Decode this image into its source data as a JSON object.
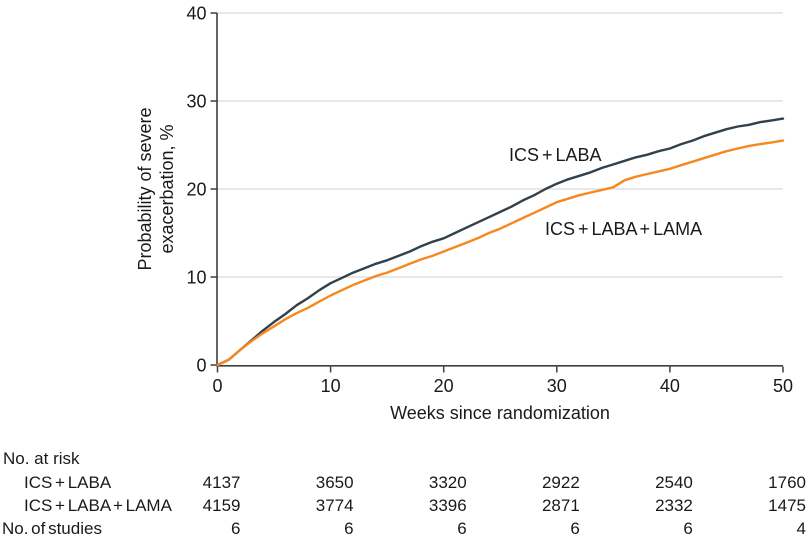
{
  "figure": {
    "y_title_line1": "Probability of severe",
    "y_title_line2": "exacerbation, %",
    "label_ics_laba": "ICS + LABA",
    "label_ics_laba_lama": "ICS + LABA + LAMA"
  },
  "chart_data": {
    "type": "line",
    "title": "",
    "xlabel": "Weeks since randomization",
    "ylabel": "Probability of severe exacerbation, %",
    "xlim": [
      0,
      50
    ],
    "ylim": [
      0,
      40
    ],
    "x_ticks": [
      0,
      10,
      20,
      30,
      40,
      50
    ],
    "y_ticks": [
      0,
      10,
      20,
      30,
      40
    ],
    "grid": "horizontal",
    "legend_position": "inline-labels",
    "series": [
      {
        "name": "ICS + LABA",
        "color": "#31424b",
        "x": [
          0,
          1,
          2,
          3,
          4,
          5,
          6,
          7,
          8,
          9,
          10,
          11,
          12,
          13,
          14,
          15,
          16,
          17,
          18,
          19,
          20,
          21,
          22,
          23,
          24,
          25,
          26,
          27,
          28,
          29,
          30,
          31,
          32,
          33,
          34,
          35,
          36,
          37,
          38,
          39,
          40,
          41,
          42,
          43,
          44,
          45,
          46,
          47,
          48,
          49,
          50
        ],
        "y": [
          0,
          0.6,
          1.7,
          2.8,
          3.9,
          4.9,
          5.8,
          6.8,
          7.6,
          8.5,
          9.3,
          9.9,
          10.5,
          11.0,
          11.5,
          11.9,
          12.4,
          12.9,
          13.5,
          14.0,
          14.4,
          15.0,
          15.6,
          16.2,
          16.8,
          17.4,
          18.0,
          18.7,
          19.3,
          20.0,
          20.6,
          21.1,
          21.5,
          21.9,
          22.4,
          22.8,
          23.2,
          23.6,
          23.9,
          24.3,
          24.6,
          25.1,
          25.5,
          26.0,
          26.4,
          26.8,
          27.1,
          27.3,
          27.6,
          27.8,
          28.0
        ]
      },
      {
        "name": "ICS + LABA + LAMA",
        "color": "#f6881f",
        "x": [
          0,
          1,
          2,
          3,
          4,
          5,
          6,
          7,
          8,
          9,
          10,
          11,
          12,
          13,
          14,
          15,
          16,
          17,
          18,
          19,
          20,
          21,
          22,
          23,
          24,
          25,
          26,
          27,
          28,
          29,
          30,
          31,
          32,
          33,
          34,
          35,
          36,
          37,
          38,
          39,
          40,
          41,
          42,
          43,
          44,
          45,
          46,
          47,
          48,
          49,
          50
        ],
        "y": [
          0,
          0.6,
          1.7,
          2.7,
          3.6,
          4.4,
          5.2,
          5.9,
          6.5,
          7.2,
          7.9,
          8.5,
          9.1,
          9.6,
          10.1,
          10.5,
          11.0,
          11.5,
          12.0,
          12.4,
          12.9,
          13.4,
          13.9,
          14.4,
          15.0,
          15.5,
          16.1,
          16.7,
          17.3,
          17.9,
          18.5,
          18.9,
          19.3,
          19.6,
          19.9,
          20.2,
          21.0,
          21.4,
          21.7,
          22.0,
          22.3,
          22.7,
          23.1,
          23.5,
          23.9,
          24.3,
          24.6,
          24.9,
          25.1,
          25.3,
          25.5
        ]
      }
    ]
  },
  "risk_table": {
    "header": "No. at risk",
    "rows": [
      {
        "label": "ICS + LABA",
        "values": [
          "4137",
          "3650",
          "3320",
          "2922",
          "2540",
          "1760"
        ]
      },
      {
        "label": "ICS + LABA + LAMA",
        "values": [
          "4159",
          "3774",
          "3396",
          "2871",
          "2332",
          "1475"
        ]
      }
    ],
    "studies_row": {
      "label": "No. of studies",
      "values": [
        "6",
        "6",
        "6",
        "6",
        "6",
        "4"
      ]
    }
  },
  "colors": {
    "series_dark": "#31424b",
    "series_orange": "#f6881f",
    "gridline": "#d9d9d9",
    "axis": "#3f3f3f",
    "text": "#1a1a1a"
  }
}
